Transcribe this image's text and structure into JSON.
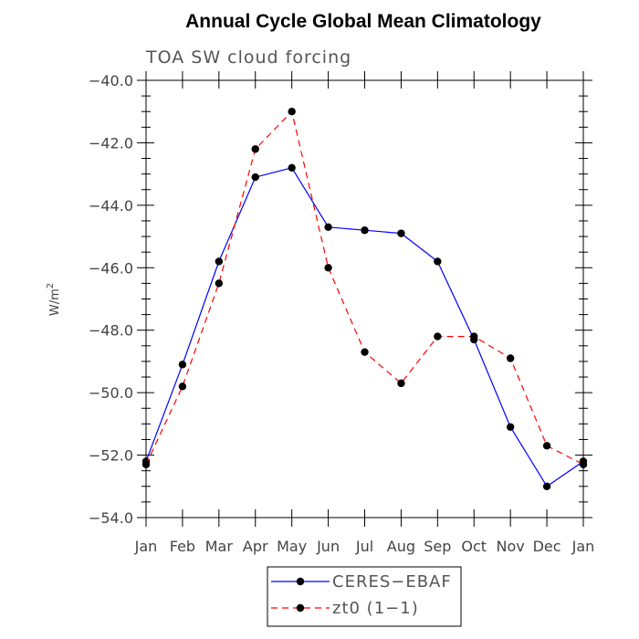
{
  "chart_data": {
    "type": "line",
    "title": "Annual Cycle Global Mean Climatology",
    "subtitle": "TOA SW cloud forcing",
    "ylabel": "W/m",
    "ylabel_sup": "2",
    "xlabel": "",
    "categories": [
      "Jan",
      "Feb",
      "Mar",
      "Apr",
      "May",
      "Jun",
      "Jul",
      "Aug",
      "Sep",
      "Oct",
      "Nov",
      "Dec",
      "Jan"
    ],
    "ylim": [
      -54.0,
      -40.0
    ],
    "yticks": [
      -54.0,
      -52.0,
      -50.0,
      -48.0,
      -46.0,
      -44.0,
      -42.0,
      -40.0
    ],
    "ytick_labels": [
      "−54.0",
      "−52.0",
      "−50.0",
      "−48.0",
      "−46.0",
      "−44.0",
      "−42.0",
      "−40.0"
    ],
    "grid": false,
    "legend_position": "bottom-center",
    "series": [
      {
        "name": "CERES−EBAF",
        "color": "#0000ff",
        "dash": "solid",
        "values": [
          -52.2,
          -49.1,
          -45.8,
          -43.1,
          -42.8,
          -44.7,
          -44.8,
          -44.9,
          -45.8,
          -48.3,
          -51.1,
          -53.0,
          -52.2
        ]
      },
      {
        "name": "zt0 (1−1)",
        "color": "#ff0000",
        "dash": "dashed",
        "values": [
          -52.3,
          -49.8,
          -46.5,
          -42.2,
          -41.0,
          -46.0,
          -48.7,
          -49.7,
          -48.2,
          -48.2,
          -48.9,
          -51.7,
          -52.3
        ]
      }
    ]
  }
}
